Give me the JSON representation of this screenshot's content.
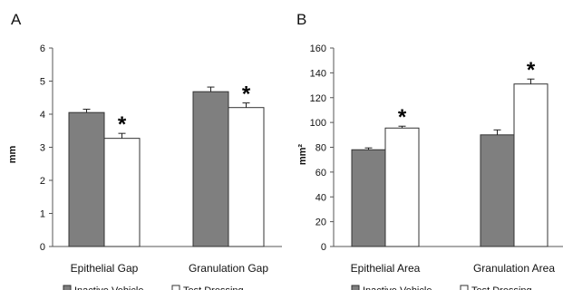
{
  "chart_data": [
    {
      "type": "bar",
      "panel_label": "A",
      "ylabel": "mm",
      "ylim": [
        0,
        6
      ],
      "ytick_step": 1,
      "categories": [
        "Epithelial Gap",
        "Granulation Gap"
      ],
      "series": [
        {
          "name": "Inactive Vehicle",
          "values": [
            4.05,
            4.68
          ],
          "errors": [
            0.1,
            0.14
          ],
          "color": "#7f7f7f"
        },
        {
          "name": "Test Dressing",
          "values": [
            3.27,
            4.2
          ],
          "errors": [
            0.15,
            0.14
          ],
          "color": "#ffffff"
        }
      ],
      "annotations": [
        {
          "text": "*",
          "category": 0,
          "series": 1
        },
        {
          "text": "*",
          "category": 1,
          "series": 1
        }
      ],
      "legend": "bottom",
      "grid": false
    },
    {
      "type": "bar",
      "panel_label": "B",
      "ylabel": "mm²",
      "ylim": [
        0,
        160
      ],
      "ytick_step": 20,
      "categories": [
        "Epithelial Area",
        "Granulation Area"
      ],
      "series": [
        {
          "name": "Inactive Vehicle",
          "values": [
            78,
            90
          ],
          "errors": [
            1.5,
            4
          ],
          "color": "#7f7f7f"
        },
        {
          "name": "Test Dressing",
          "values": [
            95.5,
            131
          ],
          "errors": [
            1.5,
            4
          ],
          "color": "#ffffff"
        }
      ],
      "annotations": [
        {
          "text": "*",
          "category": 0,
          "series": 1
        },
        {
          "text": "*",
          "category": 1,
          "series": 1
        }
      ],
      "legend": "bottom",
      "grid": false
    }
  ]
}
